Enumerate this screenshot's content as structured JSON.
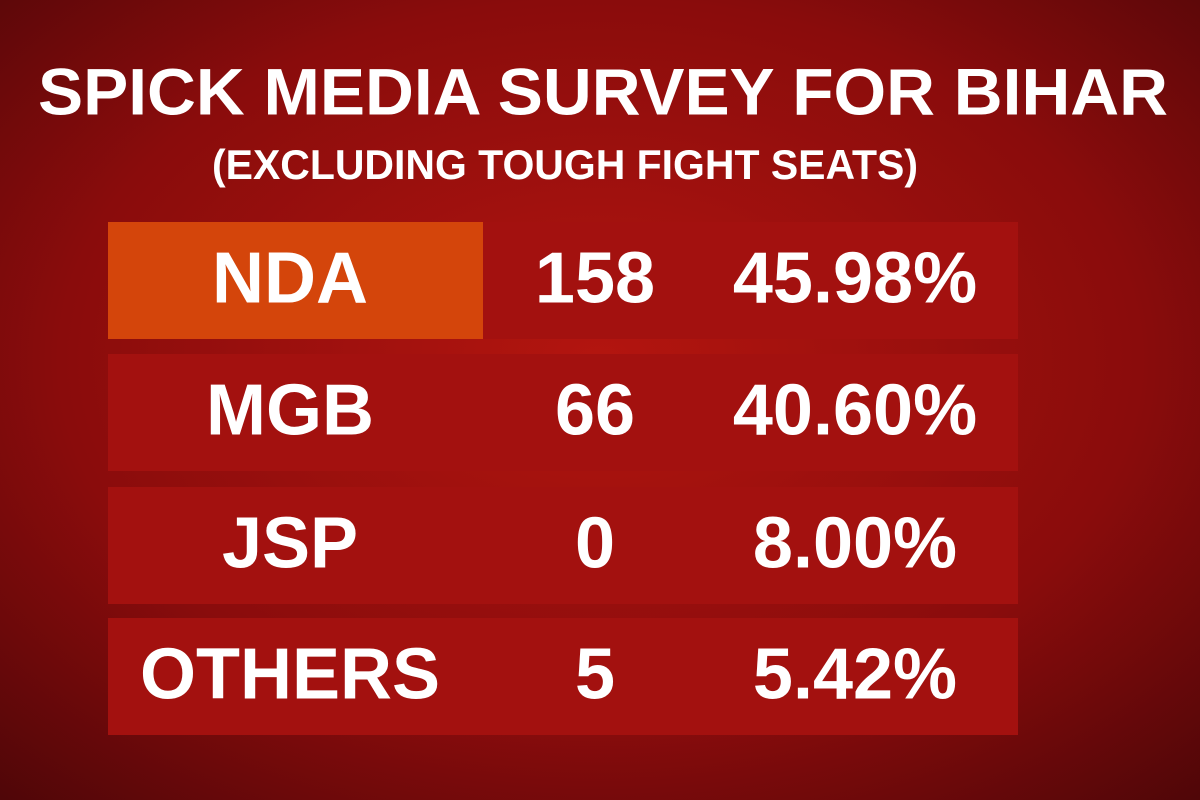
{
  "header": {
    "title": "SPICK MEDIA SURVEY FOR BIHAR",
    "subtitle": "(EXCLUDING TOUGH FIGHT SEATS)"
  },
  "table": {
    "rows": [
      [
        "NDA",
        "158",
        "45.98%"
      ],
      [
        "MGB",
        "66",
        "40.60%"
      ],
      [
        "JSP",
        "0",
        "8.00%"
      ],
      [
        "OTHERS",
        "5",
        "5.42%"
      ]
    ]
  }
}
